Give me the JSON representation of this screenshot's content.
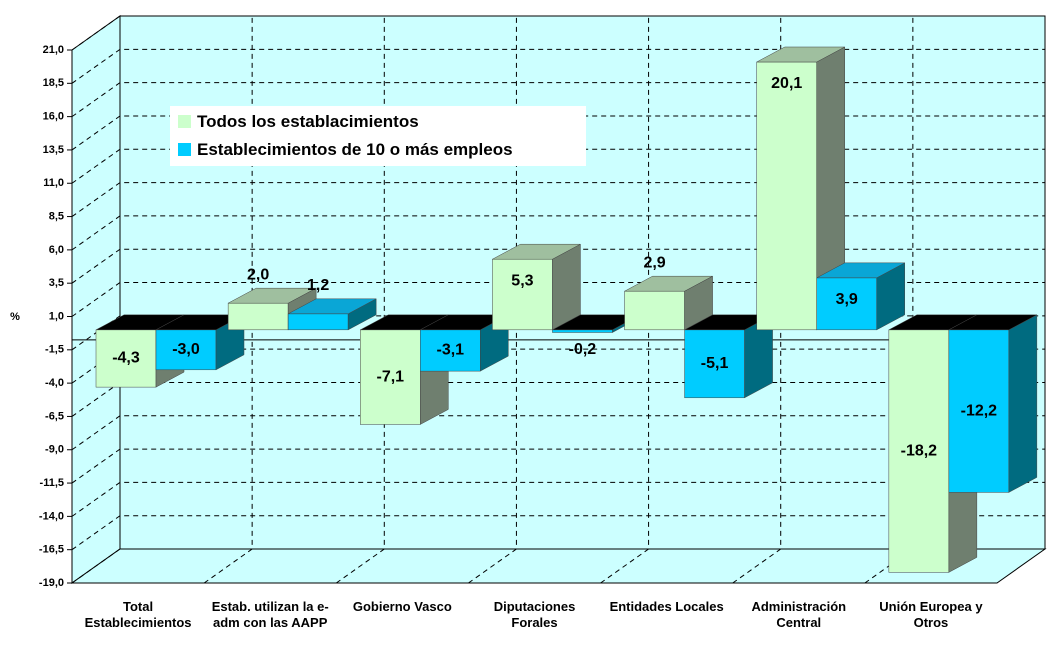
{
  "chart_data": {
    "type": "bar3d",
    "y_label": "%",
    "categories": [
      "Total Establecimientos",
      "Estab. utilizan la e-adm con las AAPP",
      "Gobierno Vasco",
      "Diputaciones Forales",
      "Entidades Locales",
      "Administración Central",
      "Unión Europea y Otros"
    ],
    "series": [
      {
        "name": "Todos los establacimientos",
        "color": "#ccffcc",
        "side": "#6f7f6f",
        "top": "#9fbf9f",
        "values": [
          -4.3,
          2.0,
          -7.1,
          5.3,
          2.9,
          20.1,
          -18.2
        ],
        "value_labels": [
          "-4,3",
          "2,0",
          "-7,1",
          "5,3",
          "2,9",
          "20,1",
          "-18,2"
        ]
      },
      {
        "name": "Establecimientos de 10 o más empleos",
        "color": "#00ccff",
        "side": "#006b80",
        "top": "#0aa6d6",
        "values": [
          -3.0,
          1.2,
          -3.1,
          -0.2,
          -5.1,
          3.9,
          -12.2
        ],
        "value_labels": [
          "-3,0",
          "1,2",
          "-3,1",
          "-0,2",
          "-5,1",
          "3,9",
          "-12,2"
        ]
      }
    ],
    "ylim": [
      -19,
      21
    ],
    "yticks": [
      {
        "value": 21,
        "label": "21,0"
      },
      {
        "value": 18.5,
        "label": "18,5"
      },
      {
        "value": 16,
        "label": "16,0"
      },
      {
        "value": 13.5,
        "label": "13,5"
      },
      {
        "value": 11,
        "label": "11,0"
      },
      {
        "value": 8.5,
        "label": "8,5"
      },
      {
        "value": 6,
        "label": "6,0"
      },
      {
        "value": 3.5,
        "label": "3,5"
      },
      {
        "value": 1,
        "label": "1,0"
      },
      {
        "value": -1.5,
        "label": "-1,5"
      },
      {
        "value": -4,
        "label": "-4,0"
      },
      {
        "value": -6.5,
        "label": "-6,5"
      },
      {
        "value": -9,
        "label": "-9,0"
      },
      {
        "value": -11.5,
        "label": "-11,5"
      },
      {
        "value": -14,
        "label": "-14,0"
      },
      {
        "value": -16.5,
        "label": "-16,5"
      },
      {
        "value": -19,
        "label": "-19,0"
      }
    ],
    "grid": true,
    "legend": "upper left"
  }
}
